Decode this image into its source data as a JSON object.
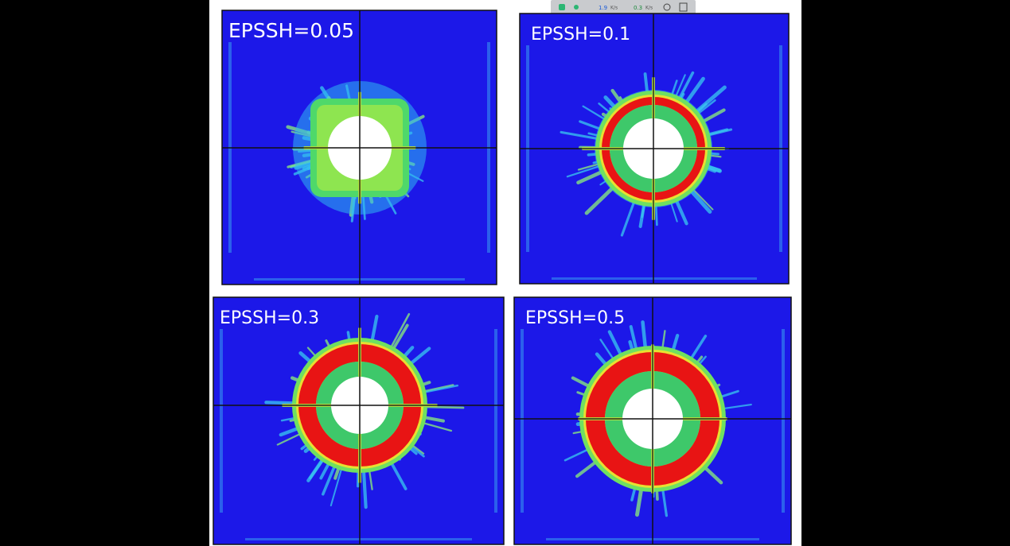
{
  "toolbar": {
    "items": [
      "1.9",
      "K/s",
      "0.3",
      "K/s"
    ]
  },
  "panels": [
    {
      "label": "EPSSH=0.05"
    },
    {
      "label": "EPSSH=0.1"
    },
    {
      "label": "EPSSH=0.3"
    },
    {
      "label": "EPSSH=0.5"
    }
  ]
}
